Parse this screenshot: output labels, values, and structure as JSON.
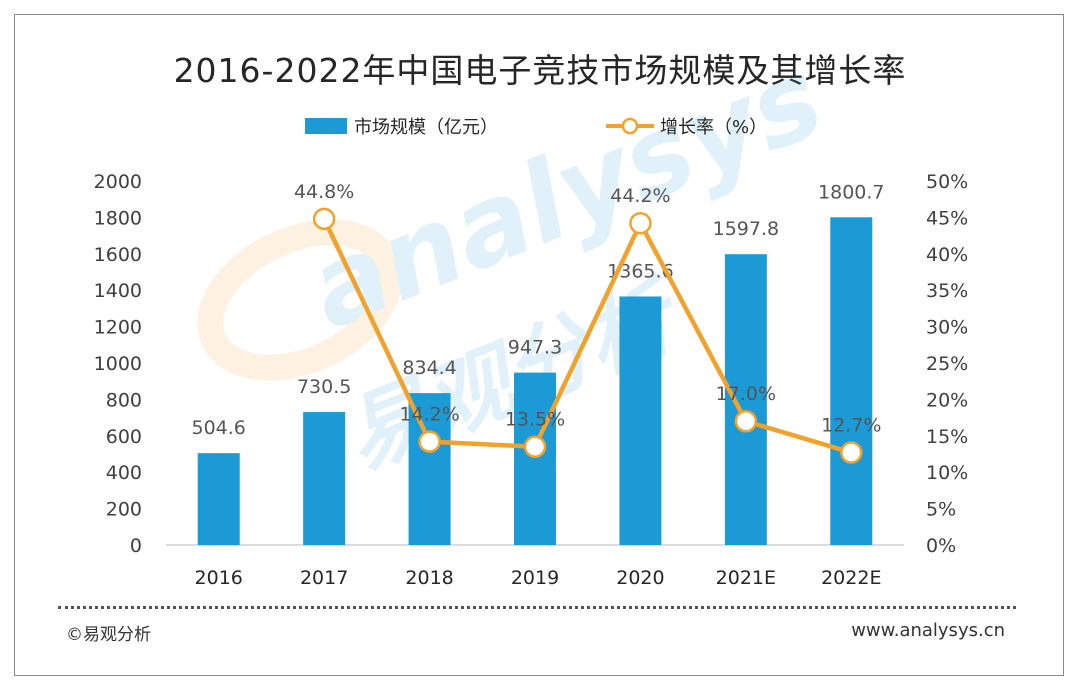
{
  "chart_data": {
    "type": "bar+line",
    "title": "2016-2022年中国电子竞技市场规模及其增长率",
    "categories": [
      "2016",
      "2017",
      "2018",
      "2019",
      "2020",
      "2021E",
      "2022E"
    ],
    "series": [
      {
        "name": "市场规模（亿元）",
        "type": "bar",
        "axis": "left",
        "values": [
          504.6,
          730.5,
          834.4,
          947.3,
          1365.6,
          1597.8,
          1800.7
        ],
        "labels": [
          "504.6",
          "730.5",
          "834.4",
          "947.3",
          "1365.6",
          "1597.8",
          "1800.7"
        ]
      },
      {
        "name": "增长率（%）",
        "type": "line",
        "axis": "right",
        "values": [
          null,
          44.8,
          14.2,
          13.5,
          44.2,
          17.0,
          12.7
        ],
        "labels": [
          "",
          "44.8%",
          "14.2%",
          "13.5%",
          "44.2%",
          "17.0%",
          "12.7%"
        ]
      }
    ],
    "y_left": {
      "min": 0,
      "max": 2000,
      "step": 200,
      "ticks": [
        "0",
        "200",
        "400",
        "600",
        "800",
        "1000",
        "1200",
        "1400",
        "1600",
        "1800",
        "2000"
      ]
    },
    "y_right": {
      "min": 0,
      "max": 50,
      "step": 5,
      "ticks": [
        "0%",
        "5%",
        "10%",
        "15%",
        "20%",
        "25%",
        "30%",
        "35%",
        "40%",
        "45%",
        "50%"
      ]
    },
    "legend_position": "top-center",
    "grid": false
  },
  "colors": {
    "bar": "#1b9ad6",
    "line": "#f0a22c",
    "marker_fill": "#ffffff"
  },
  "watermark": {
    "text": "analysys",
    "cn_text": "易观分析"
  },
  "footer": {
    "source": "©易观分析",
    "site": "www.analysys.cn"
  }
}
